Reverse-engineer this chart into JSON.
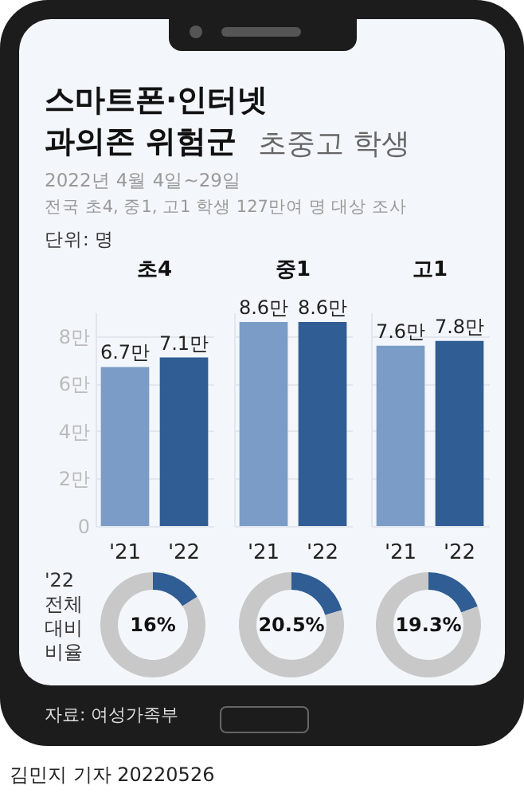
{
  "chart_data": [
    {
      "type": "bar",
      "title": "초4",
      "categories": [
        "'21",
        "'22"
      ],
      "values": [
        6.7,
        7.1
      ],
      "colors": [
        "#7b9cc6",
        "#2f5d94"
      ],
      "value_labels": [
        "6.7만",
        "7.1만"
      ],
      "ylim": [
        0,
        9
      ],
      "yticks": [
        0,
        {
          "value": 2,
          "label": "2만"
        },
        {
          "value": 4,
          "label": "4만"
        },
        {
          "value": 6,
          "label": "6만"
        },
        {
          "value": 8,
          "label": "8만"
        }
      ],
      "grid": "y",
      "annotations": [
        "스마트폰·인터넷 과의존 위험군",
        "초중고 학생",
        "2022년 4월 4일~29일",
        "전국 초4, 중1, 고1 학생 127만여 명 대상 조사",
        "단위: 명",
        "자료: 여성가족부",
        "김민지 기자 20220526"
      ]
    },
    {
      "type": "bar",
      "title": "중1",
      "categories": [
        "'21",
        "'22"
      ],
      "values": [
        8.6,
        8.6
      ],
      "colors": [
        "#7b9cc6",
        "#2f5d94"
      ],
      "value_labels": [
        "8.6만",
        "8.6만"
      ],
      "ylim": [
        0,
        9
      ],
      "yticks": [
        0,
        2,
        4,
        6,
        8
      ],
      "grid": "y",
      "tick_labels": "x"
    },
    {
      "type": "bar",
      "title": "고1",
      "categories": [
        "'21",
        "'22"
      ],
      "values": [
        7.6,
        7.8
      ],
      "colors": [
        "#7b9cc6",
        "#2f5d94"
      ],
      "value_labels": [
        "7.6만",
        "7.8만"
      ],
      "ylim": [
        0,
        9
      ],
      "yticks": [
        0,
        2,
        4,
        6,
        8
      ],
      "grid": "y",
      "tick_labels": "x"
    },
    {
      "type": "donut",
      "categories": [
        null,
        null
      ],
      "values": [
        16,
        84
      ],
      "colors": [
        "#2f5d94",
        "#c8c8c8"
      ],
      "annotations": [
        "16%",
        "'22 전체 대비 비율"
      ]
    },
    {
      "type": "donut",
      "categories": [
        null,
        null
      ],
      "values": [
        20.5,
        79.5
      ],
      "colors": [
        "#2f5d94",
        "#c8c8c8"
      ],
      "annotations": [
        "20.5%"
      ]
    },
    {
      "type": "donut",
      "categories": [
        null,
        null
      ],
      "values": [
        19.3,
        80.7
      ],
      "colors": [
        "#2f5d94",
        "#c8c8c8"
      ],
      "annotations": [
        "19.3%"
      ]
    }
  ]
}
